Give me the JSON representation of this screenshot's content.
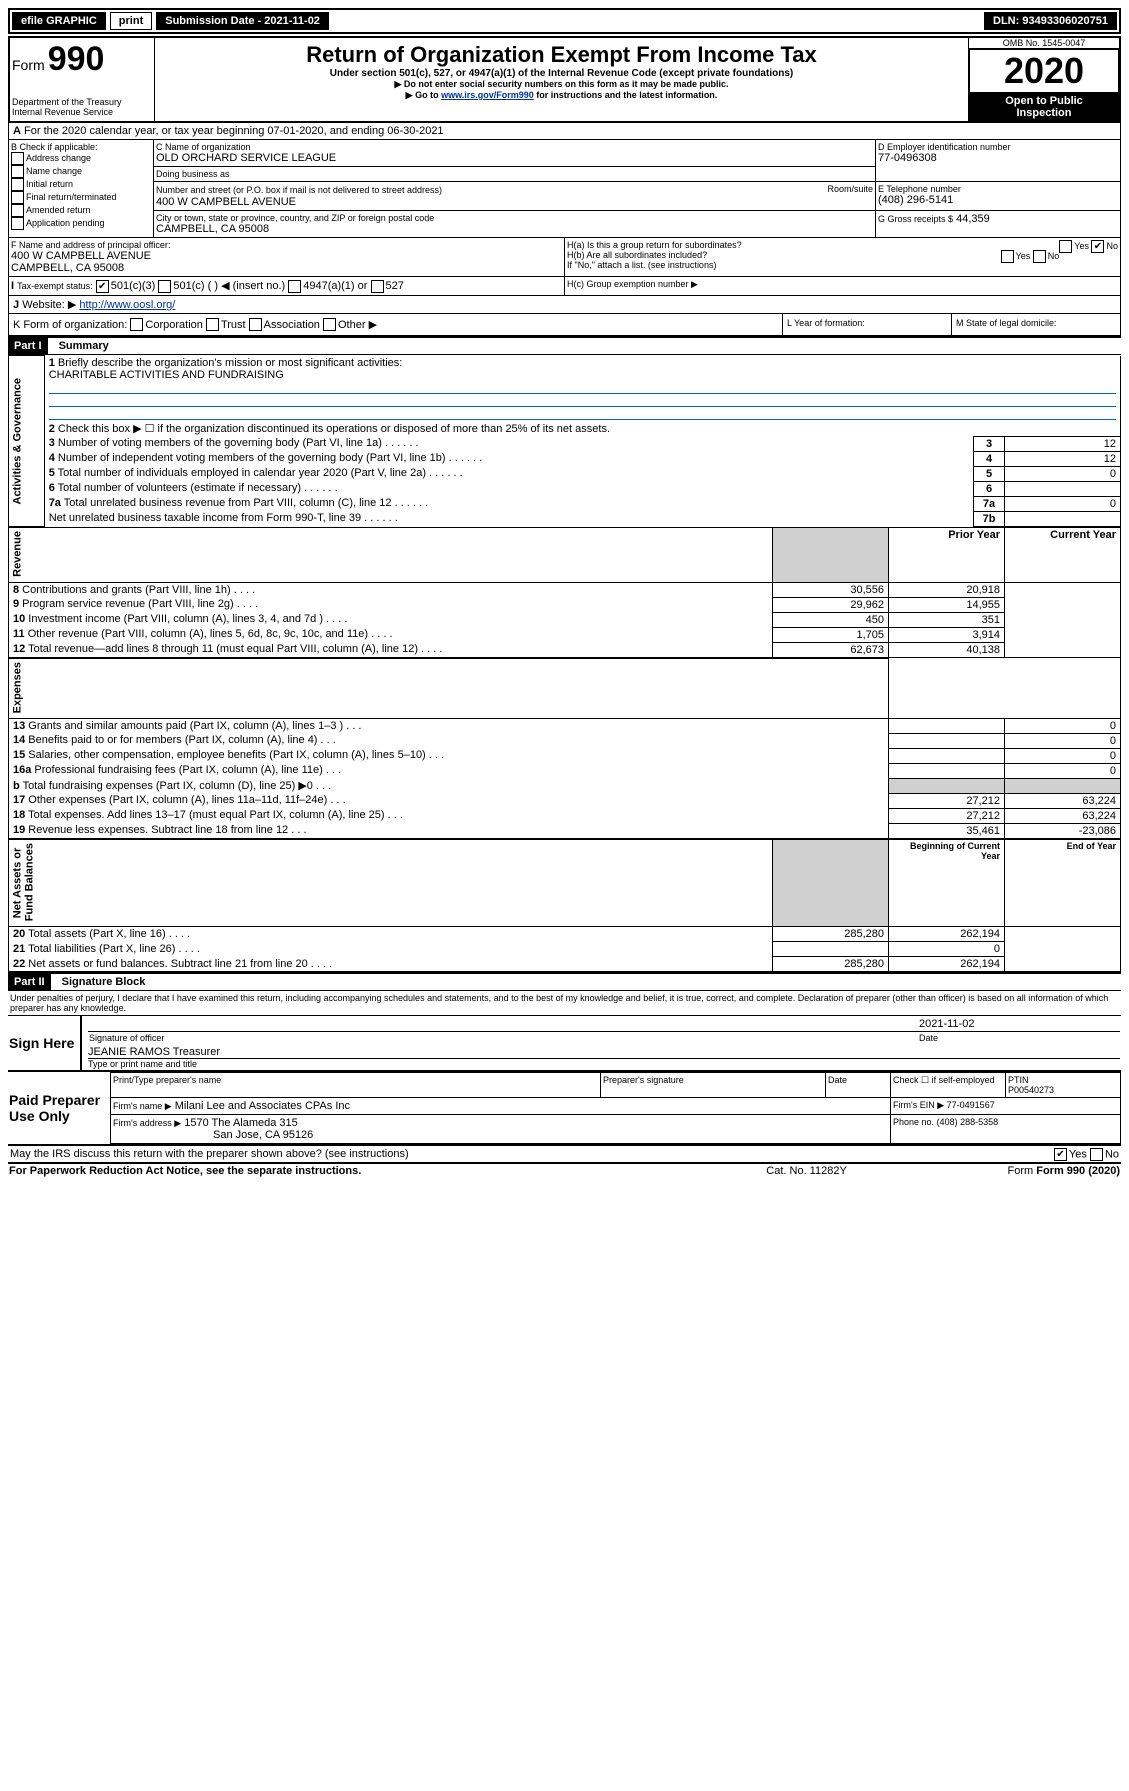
{
  "topbar": {
    "efile": "efile GRAPHIC",
    "print": "print",
    "subdate_lbl": "Submission Date - 2021-11-02",
    "dln_lbl": "DLN: 93493306020751"
  },
  "header": {
    "form_word": "Form",
    "form_num": "990",
    "dept": "Department of the Treasury\nInternal Revenue Service",
    "title": "Return of Organization Exempt From Income Tax",
    "sub1": "Under section 501(c), 527, or 4947(a)(1) of the Internal Revenue Code (except private foundations)",
    "sub2": "▶ Do not enter social security numbers on this form as it may be made public.",
    "sub3": "▶ Go to www.irs.gov/Form990 for instructions and the latest information.",
    "link": "www.irs.gov/Form990",
    "omb": "OMB No. 1545-0047",
    "year": "2020",
    "open": "Open to Public\nInspection"
  },
  "periodA": {
    "text": "For the 2020 calendar year, or tax year beginning 07-01-2020",
    "end": ", and ending 06-30-2021"
  },
  "boxB": {
    "lbl": "B Check if applicable:",
    "addr": "Address change",
    "name": "Name change",
    "init": "Initial return",
    "final": "Final return/terminated",
    "amend": "Amended return",
    "app": "Application pending"
  },
  "boxC": {
    "lbl": "C Name of organization",
    "org": "OLD ORCHARD SERVICE LEAGUE",
    "dba_lbl": "Doing business as",
    "dba": "",
    "street_lbl": "Number and street (or P.O. box if mail is not delivered to street address)",
    "street": "400 W CAMPBELL AVENUE",
    "room_lbl": "Room/suite",
    "city_lbl": "City or town, state or province, country, and ZIP or foreign postal code",
    "city": "CAMPBELL, CA  95008"
  },
  "boxD": {
    "lbl": "D Employer identification number",
    "val": "77-0496308"
  },
  "boxE": {
    "lbl": "E Telephone number",
    "val": "(408) 296-5141"
  },
  "boxG": {
    "lbl": "G Gross receipts $",
    "val": "44,359"
  },
  "boxF": {
    "lbl": "F Name and address of principal officer:",
    "line1": "400 W CAMPBELL AVENUE",
    "line2": "CAMPBELL, CA  95008"
  },
  "boxH": {
    "ha": "H(a)  Is this a group return for subordinates?",
    "hb": "H(b)  Are all subordinates included?",
    "hb_note": "If \"No,\" attach a list. (see instructions)",
    "hc": "H(c)  Group exemption number ▶",
    "yes": "Yes",
    "no": "No"
  },
  "boxI": {
    "lbl": "Tax-exempt status:",
    "c3": "501(c)(3)",
    "c": "501(c) (  ) ◀ (insert no.)",
    "a1": "4947(a)(1) or",
    "s527": "527"
  },
  "boxJ": {
    "lbl": "Website: ▶",
    "val": "http://www.oosl.org/"
  },
  "boxK": {
    "lbl": "K Form of organization:",
    "corp": "Corporation",
    "trust": "Trust",
    "assoc": "Association",
    "other": "Other ▶"
  },
  "boxL": {
    "lbl": "L Year of formation:",
    "val": ""
  },
  "boxM": {
    "lbl": "M State of legal domicile:",
    "val": ""
  },
  "part1": {
    "hdr": "Part I",
    "title": "Summary",
    "q1": "Briefly describe the organization's mission or most significant activities:",
    "q1_ans": "CHARITABLE ACTIVITIES AND FUNDRAISING",
    "q2": "Check this box ▶ ☐  if the organization discontinued its operations or disposed of more than 25% of its net assets.",
    "vlabs": {
      "ag": "Activities & Governance",
      "rev": "Revenue",
      "exp": "Expenses",
      "na": "Net Assets or\nFund Balances"
    },
    "rows_ag": [
      {
        "n": "3",
        "d": "Number of voting members of the governing body (Part VI, line 1a)",
        "c": "3",
        "v": "12"
      },
      {
        "n": "4",
        "d": "Number of independent voting members of the governing body (Part VI, line 1b)",
        "c": "4",
        "v": "12"
      },
      {
        "n": "5",
        "d": "Total number of individuals employed in calendar year 2020 (Part V, line 2a)",
        "c": "5",
        "v": "0"
      },
      {
        "n": "6",
        "d": "Total number of volunteers (estimate if necessary)",
        "c": "6",
        "v": ""
      },
      {
        "n": "7a",
        "d": "Total unrelated business revenue from Part VIII, column (C), line 12",
        "c": "7a",
        "v": "0"
      },
      {
        "n": "",
        "d": "Net unrelated business taxable income from Form 990-T, line 39",
        "c": "7b",
        "v": ""
      }
    ],
    "col_prior": "Prior Year",
    "col_curr": "Current Year",
    "rows_rev": [
      {
        "n": "8",
        "d": "Contributions and grants (Part VIII, line 1h)",
        "p": "30,556",
        "c": "20,918"
      },
      {
        "n": "9",
        "d": "Program service revenue (Part VIII, line 2g)",
        "p": "29,962",
        "c": "14,955"
      },
      {
        "n": "10",
        "d": "Investment income (Part VIII, column (A), lines 3, 4, and 7d )",
        "p": "450",
        "c": "351"
      },
      {
        "n": "11",
        "d": "Other revenue (Part VIII, column (A), lines 5, 6d, 8c, 9c, 10c, and 11e)",
        "p": "1,705",
        "c": "3,914"
      },
      {
        "n": "12",
        "d": "Total revenue—add lines 8 through 11 (must equal Part VIII, column (A), line 12)",
        "p": "62,673",
        "c": "40,138"
      }
    ],
    "rows_exp": [
      {
        "n": "13",
        "d": "Grants and similar amounts paid (Part IX, column (A), lines 1–3 )",
        "p": "",
        "c": "0"
      },
      {
        "n": "14",
        "d": "Benefits paid to or for members (Part IX, column (A), line 4)",
        "p": "",
        "c": "0"
      },
      {
        "n": "15",
        "d": "Salaries, other compensation, employee benefits (Part IX, column (A), lines 5–10)",
        "p": "",
        "c": "0"
      },
      {
        "n": "16a",
        "d": "Professional fundraising fees (Part IX, column (A), line 11e)",
        "p": "",
        "c": "0"
      },
      {
        "n": "b",
        "d": "Total fundraising expenses (Part IX, column (D), line 25) ▶0",
        "p": "shade",
        "c": "shade"
      },
      {
        "n": "17",
        "d": "Other expenses (Part IX, column (A), lines 11a–11d, 11f–24e)",
        "p": "27,212",
        "c": "63,224"
      },
      {
        "n": "18",
        "d": "Total expenses. Add lines 13–17 (must equal Part IX, column (A), line 25)",
        "p": "27,212",
        "c": "63,224"
      },
      {
        "n": "19",
        "d": "Revenue less expenses. Subtract line 18 from line 12",
        "p": "35,461",
        "c": "-23,086"
      }
    ],
    "col_bcy": "Beginning of Current Year",
    "col_eoy": "End of Year",
    "rows_na": [
      {
        "n": "20",
        "d": "Total assets (Part X, line 16)",
        "p": "285,280",
        "c": "262,194"
      },
      {
        "n": "21",
        "d": "Total liabilities (Part X, line 26)",
        "p": "",
        "c": "0"
      },
      {
        "n": "22",
        "d": "Net assets or fund balances. Subtract line 21 from line 20",
        "p": "285,280",
        "c": "262,194"
      }
    ]
  },
  "part2": {
    "hdr": "Part II",
    "title": "Signature Block",
    "decl": "Under penalties of perjury, I declare that I have examined this return, including accompanying schedules and statements, and to the best of my knowledge and belief, it is true, correct, and complete. Declaration of preparer (other than officer) is based on all information of which preparer has any knowledge.",
    "sign_here": "Sign Here",
    "sig_off": "Signature of officer",
    "sig_date": "2021-11-02",
    "date_lbl": "Date",
    "typed": "JEANIE RAMOS  Treasurer",
    "typed_lbl": "Type or print name and title",
    "paid": "Paid Preparer Use Only",
    "pp_name_lbl": "Print/Type preparer's name",
    "pp_sig_lbl": "Preparer's signature",
    "pp_date_lbl": "Date",
    "pp_self": "Check ☐ if self-employed",
    "ptin_lbl": "PTIN",
    "ptin": "P00540273",
    "firm_name_lbl": "Firm's name   ▶",
    "firm_name": "Milani Lee and Associates CPAs Inc",
    "firm_ein_lbl": "Firm's EIN ▶",
    "firm_ein": "77-0491567",
    "firm_addr_lbl": "Firm's address ▶",
    "firm_addr1": "1570 The Alameda 315",
    "firm_addr2": "San Jose, CA  95126",
    "phone_lbl": "Phone no.",
    "phone": "(408) 288-5358",
    "discuss": "May the IRS discuss this return with the preparer shown above? (see instructions)",
    "yes": "Yes",
    "no": "No"
  },
  "footer": {
    "pra": "For Paperwork Reduction Act Notice, see the separate instructions.",
    "cat": "Cat. No. 11282Y",
    "form": "Form 990 (2020)"
  }
}
